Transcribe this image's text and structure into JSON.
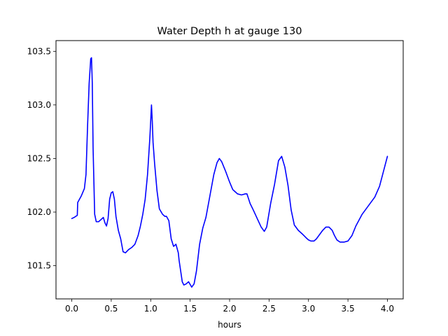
{
  "chart_data": {
    "type": "line",
    "title": "Water Depth h at gauge 130",
    "xlabel": "hours",
    "ylabel": "",
    "xlim": [
      -0.2,
      4.2
    ],
    "ylim": [
      101.19,
      103.6
    ],
    "xticks": [
      0.0,
      0.5,
      1.0,
      1.5,
      2.0,
      2.5,
      3.0,
      3.5,
      4.0
    ],
    "xtick_labels": [
      "0.0",
      "0.5",
      "1.0",
      "1.5",
      "2.0",
      "2.5",
      "3.0",
      "3.5",
      "4.0"
    ],
    "yticks": [
      101.5,
      102.0,
      102.5,
      103.0,
      103.5
    ],
    "ytick_labels": [
      "101.5",
      "102.0",
      "102.5",
      "103.0",
      "103.5"
    ],
    "grid": false,
    "series": [
      {
        "color": "#0000ff",
        "x": [
          0.0,
          0.03,
          0.07,
          0.075,
          0.12,
          0.16,
          0.18,
          0.2,
          0.22,
          0.24,
          0.25,
          0.26,
          0.27,
          0.29,
          0.31,
          0.34,
          0.37,
          0.4,
          0.42,
          0.44,
          0.46,
          0.48,
          0.5,
          0.52,
          0.54,
          0.56,
          0.59,
          0.62,
          0.65,
          0.68,
          0.72,
          0.76,
          0.8,
          0.84,
          0.87,
          0.9,
          0.93,
          0.96,
          0.99,
          1.01,
          1.02,
          1.03,
          1.05,
          1.08,
          1.11,
          1.15,
          1.18,
          1.2,
          1.23,
          1.26,
          1.29,
          1.32,
          1.35,
          1.36,
          1.38,
          1.4,
          1.42,
          1.45,
          1.48,
          1.52,
          1.55,
          1.58,
          1.62,
          1.66,
          1.7,
          1.75,
          1.8,
          1.84,
          1.87,
          1.9,
          1.95,
          2.0,
          2.04,
          2.07,
          2.1,
          2.15,
          2.2,
          2.22,
          2.26,
          2.3,
          2.35,
          2.4,
          2.44,
          2.47,
          2.52,
          2.57,
          2.62,
          2.66,
          2.7,
          2.74,
          2.78,
          2.82,
          2.87,
          2.93,
          2.97,
          3.0,
          3.03,
          3.07,
          3.1,
          3.14,
          3.18,
          3.22,
          3.26,
          3.3,
          3.33,
          3.36,
          3.4,
          3.45,
          3.5,
          3.55,
          3.6,
          3.68,
          3.76,
          3.84,
          3.9,
          3.95,
          4.0
        ],
        "values": [
          101.94,
          101.95,
          101.97,
          102.09,
          102.15,
          102.22,
          102.35,
          102.8,
          103.2,
          103.43,
          103.44,
          103.2,
          102.6,
          101.98,
          101.91,
          101.91,
          101.93,
          101.95,
          101.9,
          101.87,
          101.94,
          102.12,
          102.18,
          102.19,
          102.12,
          101.96,
          101.83,
          101.75,
          101.63,
          101.62,
          101.65,
          101.67,
          101.7,
          101.78,
          101.87,
          101.98,
          102.12,
          102.35,
          102.7,
          103.0,
          102.85,
          102.65,
          102.45,
          102.2,
          102.03,
          101.98,
          101.96,
          101.96,
          101.92,
          101.75,
          101.68,
          101.7,
          101.62,
          101.55,
          101.45,
          101.35,
          101.32,
          101.33,
          101.35,
          101.3,
          101.33,
          101.45,
          101.7,
          101.85,
          101.95,
          102.15,
          102.35,
          102.46,
          102.5,
          102.47,
          102.38,
          102.28,
          102.21,
          102.19,
          102.17,
          102.16,
          102.17,
          102.17,
          102.08,
          102.02,
          101.94,
          101.86,
          101.82,
          101.86,
          102.08,
          102.26,
          102.48,
          102.52,
          102.42,
          102.25,
          102.02,
          101.88,
          101.83,
          101.79,
          101.76,
          101.74,
          101.73,
          101.73,
          101.75,
          101.79,
          101.83,
          101.86,
          101.86,
          101.83,
          101.78,
          101.74,
          101.72,
          101.72,
          101.73,
          101.78,
          101.87,
          101.98,
          102.06,
          102.14,
          102.24,
          102.38,
          102.52
        ]
      }
    ]
  }
}
